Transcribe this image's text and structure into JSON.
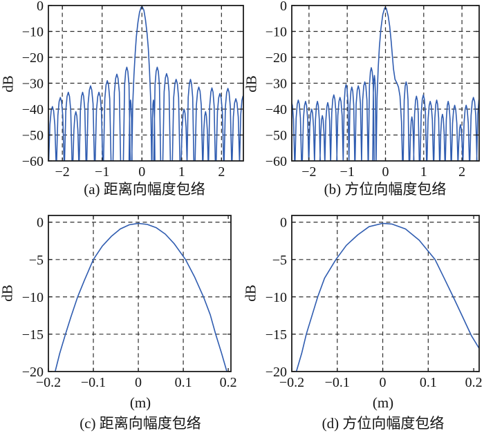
{
  "figure": {
    "line_color": "#2f5cb0",
    "grid_color": "#2e2e2e",
    "axis_color": "#1b1b1b",
    "text_color": "#141414",
    "background": "#ffffff"
  },
  "chart_data": [
    {
      "id": "a",
      "type": "line",
      "caption": "(a) 距离向幅度包络",
      "ylabel": "dB",
      "xlabel": "",
      "xlim": [
        -2.35,
        2.55
      ],
      "ylim": [
        0,
        -60
      ],
      "xticks": [
        -2,
        -1,
        0,
        1,
        2
      ],
      "yticks": [
        0,
        -10,
        -20,
        -30,
        -40,
        -50,
        -60
      ],
      "grid": true,
      "null_db": -64,
      "mainlobe": [
        [
          -0.26,
          -64
        ],
        [
          -0.23,
          -38
        ],
        [
          -0.2,
          -27
        ],
        [
          -0.17,
          -18.5
        ],
        [
          -0.14,
          -12
        ],
        [
          -0.1,
          -6.5
        ],
        [
          -0.06,
          -2.6
        ],
        [
          -0.02,
          -0.7
        ],
        [
          0.01,
          -0.5
        ],
        [
          0.05,
          -1.8
        ],
        [
          0.09,
          -5.5
        ],
        [
          0.13,
          -10.8
        ],
        [
          0.16,
          -16.5
        ],
        [
          0.19,
          -25
        ],
        [
          0.22,
          -36
        ],
        [
          0.25,
          -64
        ]
      ],
      "sidelobes": [
        [
          -2.46,
          -35,
          0.1
        ],
        [
          -2.25,
          -39,
          0.1
        ],
        [
          -2.05,
          -35.5,
          0.1
        ],
        [
          -1.85,
          -33.5,
          0.1
        ],
        [
          -1.66,
          -41,
          0.08
        ],
        [
          -1.49,
          -33.5,
          0.09
        ],
        [
          -1.29,
          -31,
          0.1
        ],
        [
          -1.08,
          -33.5,
          0.1
        ],
        [
          -0.87,
          -29,
          0.1
        ],
        [
          -0.63,
          -26.5,
          0.1
        ],
        [
          -0.38,
          -23.8,
          0.09
        ],
        [
          -0.285,
          -36.5,
          0.04
        ],
        [
          0.29,
          -36.5,
          0.04
        ],
        [
          0.385,
          -23.8,
          0.09
        ],
        [
          0.62,
          -26.3,
          0.1
        ],
        [
          0.86,
          -28.5,
          0.1
        ],
        [
          1.06,
          -40,
          0.08
        ],
        [
          1.22,
          -28.5,
          0.09
        ],
        [
          1.43,
          -31.5,
          0.1
        ],
        [
          1.6,
          -41,
          0.07
        ],
        [
          1.76,
          -31.8,
          0.09
        ],
        [
          1.96,
          -34,
          0.1
        ],
        [
          2.16,
          -32,
          0.1
        ],
        [
          2.36,
          -36,
          0.1
        ],
        [
          2.54,
          -35,
          0.09
        ]
      ]
    },
    {
      "id": "b",
      "type": "line",
      "caption": "(b) 方位向幅度包络",
      "ylabel": "dB",
      "xlabel": "",
      "xlim": [
        -2.45,
        2.45
      ],
      "ylim": [
        0,
        -60
      ],
      "xticks": [
        -2,
        -1,
        0,
        1,
        2
      ],
      "yticks": [
        0,
        -10,
        -20,
        -30,
        -40,
        -50,
        -60
      ],
      "grid": true,
      "null_db": -64,
      "mainlobe": [
        [
          -0.25,
          -64
        ],
        [
          -0.22,
          -36
        ],
        [
          -0.19,
          -24
        ],
        [
          -0.16,
          -16
        ],
        [
          -0.12,
          -9
        ],
        [
          -0.07,
          -3.5
        ],
        [
          -0.02,
          -0.9
        ],
        [
          0.02,
          -1
        ],
        [
          0.07,
          -4
        ],
        [
          0.11,
          -8
        ],
        [
          0.15,
          -14
        ],
        [
          0.18,
          -19.5
        ],
        [
          0.21,
          -24.5
        ],
        [
          0.25,
          -28.5
        ],
        [
          0.3,
          -30
        ],
        [
          0.34,
          -31.5
        ],
        [
          0.38,
          -35
        ],
        [
          0.42,
          -45
        ],
        [
          0.45,
          -64
        ]
      ],
      "sidelobes": [
        [
          -2.46,
          -37,
          0.09
        ],
        [
          -2.28,
          -36.5,
          0.09
        ],
        [
          -2.09,
          -37,
          0.09
        ],
        [
          -1.93,
          -40,
          0.08
        ],
        [
          -1.78,
          -37,
          0.08
        ],
        [
          -1.65,
          -42.5,
          0.07
        ],
        [
          -1.51,
          -37.5,
          0.08
        ],
        [
          -1.35,
          -34.5,
          0.09
        ],
        [
          -1.19,
          -35.5,
          0.09
        ],
        [
          -1.03,
          -30.5,
          0.08
        ],
        [
          -0.88,
          -31.5,
          0.08
        ],
        [
          -0.71,
          -31,
          0.09
        ],
        [
          -0.54,
          -29.5,
          0.09
        ],
        [
          -0.37,
          -24,
          0.08
        ],
        [
          -0.29,
          -27,
          0.045
        ],
        [
          0.54,
          -29.5,
          0.08
        ],
        [
          0.69,
          -43,
          0.06
        ],
        [
          0.81,
          -35,
          0.08
        ],
        [
          0.99,
          -34.5,
          0.09
        ],
        [
          1.17,
          -37,
          0.09
        ],
        [
          1.34,
          -36.5,
          0.08
        ],
        [
          1.49,
          -42,
          0.07
        ],
        [
          1.64,
          -37,
          0.08
        ],
        [
          1.81,
          -38.5,
          0.09
        ],
        [
          1.96,
          -46,
          0.07
        ],
        [
          2.11,
          -38.5,
          0.09
        ],
        [
          2.3,
          -35.5,
          0.1
        ],
        [
          2.47,
          -35,
          0.09
        ]
      ]
    },
    {
      "id": "c",
      "type": "line",
      "caption": "(c) 距离向幅度包络",
      "ylabel": "dB",
      "xlabel": "(m)",
      "xlim": [
        -0.2,
        0.206
      ],
      "ylim": [
        0.9,
        -20
      ],
      "xticks": [
        -0.2,
        -0.1,
        0,
        0.1,
        0.2
      ],
      "yticks": [
        0,
        -5,
        -10,
        -15,
        -20
      ],
      "grid": true,
      "points": [
        [
          -0.185,
          -20
        ],
        [
          -0.175,
          -17.6
        ],
        [
          -0.162,
          -15
        ],
        [
          -0.15,
          -12.7
        ],
        [
          -0.135,
          -10
        ],
        [
          -0.12,
          -7.8
        ],
        [
          -0.1,
          -5.0
        ],
        [
          -0.08,
          -3.2
        ],
        [
          -0.06,
          -1.9
        ],
        [
          -0.04,
          -0.9
        ],
        [
          -0.02,
          -0.35
        ],
        [
          0,
          -0.15
        ],
        [
          0.02,
          -0.3
        ],
        [
          0.04,
          -0.75
        ],
        [
          0.06,
          -1.6
        ],
        [
          0.08,
          -2.9
        ],
        [
          0.105,
          -5.0
        ],
        [
          0.125,
          -7.3
        ],
        [
          0.145,
          -10
        ],
        [
          0.16,
          -12.4
        ],
        [
          0.172,
          -15
        ],
        [
          0.185,
          -17.5
        ],
        [
          0.197,
          -20
        ]
      ]
    },
    {
      "id": "d",
      "type": "line",
      "caption": "(d) 方位向幅度包络",
      "ylabel": "dB",
      "xlabel": "(m)",
      "xlim": [
        -0.2,
        0.212
      ],
      "ylim": [
        0.9,
        -20
      ],
      "xticks": [
        -0.2,
        -0.1,
        0,
        0.1,
        0.2
      ],
      "yticks": [
        0,
        -5,
        -10,
        -15,
        -20
      ],
      "grid": true,
      "points": [
        [
          -0.19,
          -20
        ],
        [
          -0.178,
          -17.5
        ],
        [
          -0.168,
          -15
        ],
        [
          -0.155,
          -12.4
        ],
        [
          -0.143,
          -10
        ],
        [
          -0.128,
          -7.5
        ],
        [
          -0.103,
          -5.0
        ],
        [
          -0.08,
          -3.1
        ],
        [
          -0.055,
          -1.7
        ],
        [
          -0.03,
          -0.6
        ],
        [
          0,
          -0.15
        ],
        [
          0.02,
          -0.25
        ],
        [
          0.05,
          -0.9
        ],
        [
          0.08,
          -2.4
        ],
        [
          0.115,
          -5.0
        ],
        [
          0.135,
          -7.5
        ],
        [
          0.155,
          -10
        ],
        [
          0.175,
          -12.6
        ],
        [
          0.195,
          -15.2
        ],
        [
          0.212,
          -16.9
        ]
      ]
    }
  ]
}
